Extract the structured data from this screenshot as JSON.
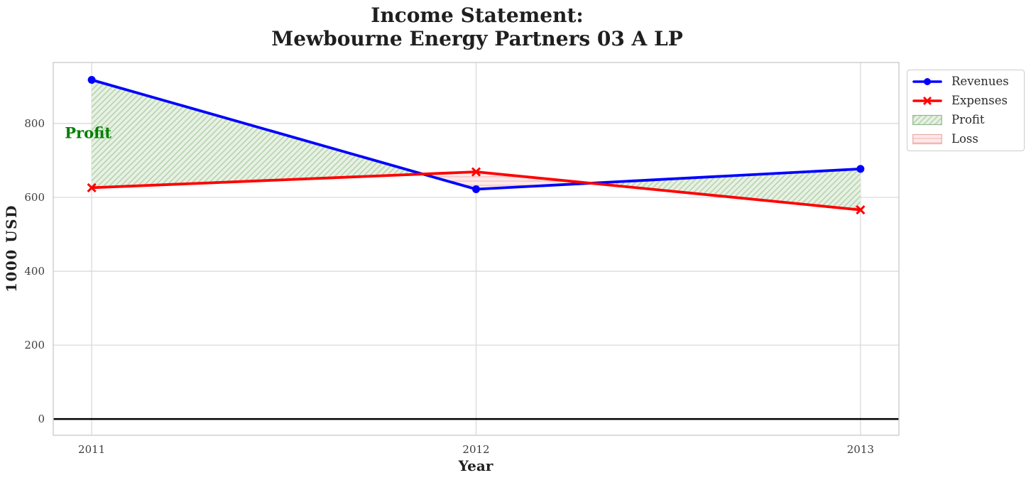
{
  "chart_data": {
    "type": "line",
    "title": "Income Statement:\nMewbourne Energy Partners 03 A LP",
    "xlabel": "Year",
    "ylabel": "1000 USD",
    "x": [
      2011,
      2012,
      2013
    ],
    "xticklabels": [
      "2011",
      "2012",
      "2013"
    ],
    "yticks": [
      0,
      200,
      400,
      600,
      800
    ],
    "yticklabels": [
      "0",
      "200",
      "400",
      "600",
      "800"
    ],
    "xlim": [
      2010.9,
      2013.1
    ],
    "ylim": [
      -44,
      965
    ],
    "grid": true,
    "grid_color": "#d7d7d7",
    "axis_border_color": "#cccccc",
    "zero_line": {
      "y": 0,
      "color": "#000000"
    },
    "series": [
      {
        "name": "Revenues",
        "values": [
          918,
          622,
          677
        ],
        "color": "#0000ff",
        "marker": "circle"
      },
      {
        "name": "Expenses",
        "values": [
          626,
          669,
          566
        ],
        "color": "#ff0000",
        "marker": "x"
      }
    ],
    "fills": [
      {
        "name": "Profit",
        "where": "revenues > expenses",
        "base_color": "#e7f1e3",
        "hatch_color": "#b6d3af",
        "hatch": "diagonal",
        "edge_color": "#8fb98b"
      },
      {
        "name": "Loss",
        "where": "expenses > revenues",
        "base_color": "#fdeaea",
        "hatch_color": "#f6c0c0",
        "hatch": "horizontal",
        "edge_color": "#eba8a8"
      }
    ],
    "legend": {
      "position": "upper-right-outside",
      "entries": [
        "Revenues",
        "Expenses",
        "Profit",
        "Loss"
      ]
    },
    "annotations": [
      {
        "text": "Profit",
        "color": "#008000",
        "x": 2010.93,
        "y": 775
      }
    ]
  }
}
